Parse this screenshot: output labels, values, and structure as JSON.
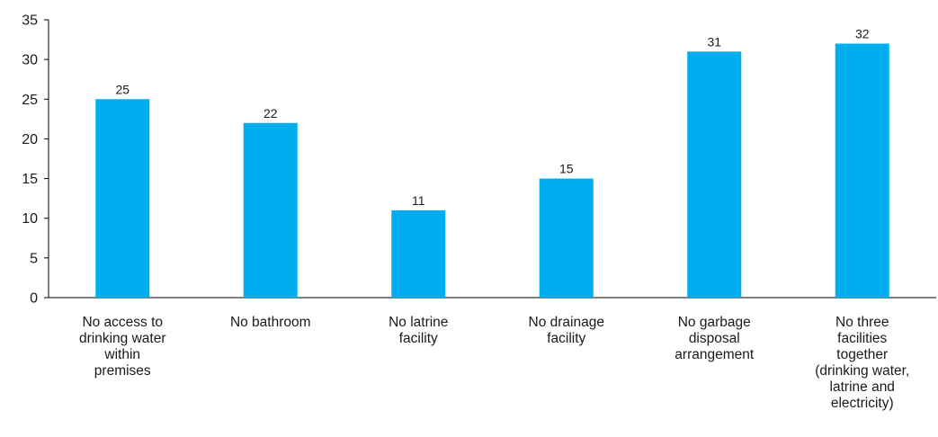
{
  "chart_data": {
    "type": "bar",
    "categories": [
      "No access to drinking water within premises",
      "No bathroom",
      "No latrine facility",
      "No drainage facility",
      "No garbage disposal arrangement",
      "No three facilities together (drinking water, latrine and electricity)"
    ],
    "category_lines": [
      [
        "No access to",
        "drinking water",
        "within",
        "premises"
      ],
      [
        "No bathroom"
      ],
      [
        "No latrine",
        "facility"
      ],
      [
        "No drainage",
        "facility"
      ],
      [
        "No garbage",
        "disposal",
        "arrangement"
      ],
      [
        "No three",
        "facilities",
        "together",
        "(drinking water,",
        "latrine and",
        "electricity)"
      ]
    ],
    "values": [
      25,
      22,
      11,
      15,
      31,
      32
    ],
    "data_labels": [
      "25",
      "22",
      "11",
      "15",
      "31",
      "32"
    ],
    "ylim": [
      0,
      35
    ],
    "yticks": [
      0,
      5,
      10,
      15,
      20,
      25,
      30,
      35
    ],
    "title": "",
    "xlabel": "",
    "ylabel": "",
    "grid": false,
    "legend": "none",
    "colors": {
      "bar": "#00AEEF",
      "axis": "#000000",
      "text": "#1a1a1a"
    }
  }
}
